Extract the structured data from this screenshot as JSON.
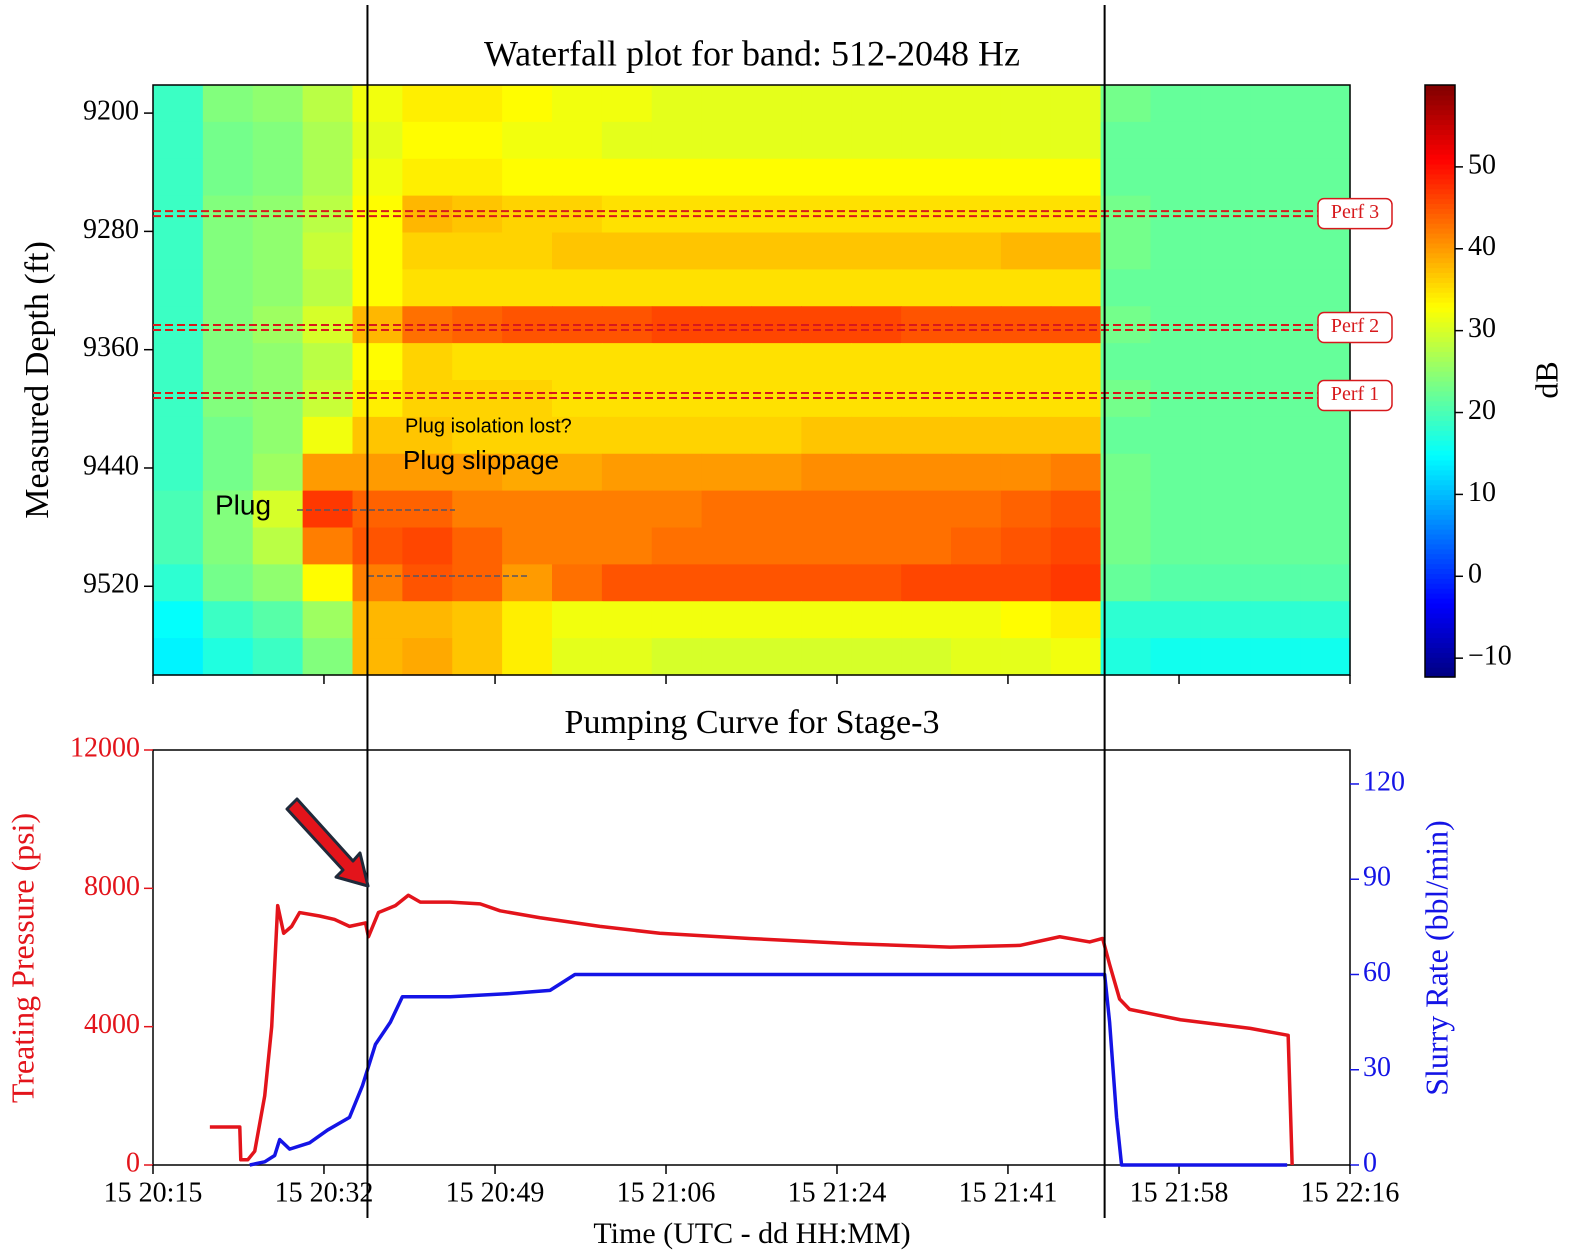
{
  "chart_data": [
    {
      "type": "heatmap",
      "title": "Waterfall plot for band: 512-2048 Hz",
      "ylabel": "Measured Depth (ft)",
      "ylim": [
        9181,
        9580
      ],
      "y_inverted": true,
      "yticks": [
        9200,
        9280,
        9360,
        9440,
        9520
      ],
      "colormap": "jet",
      "zlim": [
        -12.3,
        60
      ],
      "colorbar_label": "dB",
      "zticks": [
        {
          "value": -10,
          "label": "−10"
        },
        0,
        10,
        20,
        30,
        40,
        50
      ],
      "z": [
        [
          19,
          24,
          25,
          28,
          32,
          34,
          34,
          33,
          32,
          32,
          31,
          31,
          31,
          31,
          31,
          31,
          31,
          31,
          31,
          23,
          22,
          22,
          22,
          22
        ],
        [
          19,
          23,
          24,
          27,
          31,
          33,
          33,
          32,
          32,
          31,
          31,
          31,
          31,
          31,
          31,
          31,
          31,
          31,
          31,
          22,
          22,
          22,
          22,
          22
        ],
        [
          19,
          23,
          24,
          27,
          32,
          34,
          34,
          33,
          33,
          33,
          33,
          33,
          33,
          33,
          33,
          33,
          33,
          33,
          33,
          22,
          22,
          22,
          22,
          22
        ],
        [
          19,
          24,
          25,
          28,
          33,
          38,
          37,
          36,
          36,
          35,
          35,
          35,
          35,
          35,
          35,
          35,
          35,
          35,
          35,
          23,
          22,
          22,
          22,
          22
        ],
        [
          19,
          24,
          25,
          29,
          33,
          36,
          36,
          36,
          37,
          37,
          37,
          37,
          37,
          37,
          37,
          37,
          37,
          38,
          38,
          23,
          22,
          22,
          22,
          22
        ],
        [
          19,
          24,
          25,
          28,
          33,
          35,
          35,
          35,
          35,
          35,
          35,
          35,
          35,
          35,
          35,
          35,
          35,
          35,
          35,
          22,
          22,
          22,
          22,
          22
        ],
        [
          19,
          24,
          26,
          30,
          38,
          43,
          44,
          45,
          45,
          45,
          46,
          46,
          46,
          46,
          46,
          45,
          45,
          45,
          45,
          23,
          22,
          22,
          22,
          22
        ],
        [
          19,
          24,
          25,
          28,
          33,
          36,
          35,
          35,
          35,
          35,
          35,
          35,
          35,
          35,
          35,
          35,
          35,
          35,
          35,
          22,
          22,
          22,
          22,
          22
        ],
        [
          19,
          24,
          25,
          29,
          34,
          36,
          36,
          36,
          35,
          35,
          35,
          35,
          35,
          35,
          35,
          35,
          35,
          35,
          35,
          23,
          22,
          22,
          22,
          22
        ],
        [
          19,
          23,
          25,
          32,
          37,
          37,
          36,
          36,
          36,
          36,
          36,
          36,
          36,
          37,
          37,
          37,
          37,
          37,
          37,
          22,
          22,
          22,
          22,
          22
        ],
        [
          19,
          23,
          26,
          40,
          40,
          40,
          40,
          39,
          39,
          40,
          40,
          40,
          40,
          41,
          41,
          41,
          41,
          41,
          42,
          23,
          22,
          22,
          22,
          22
        ],
        [
          20,
          24,
          30,
          47,
          44,
          44,
          42,
          42,
          42,
          42,
          42,
          43,
          43,
          43,
          43,
          43,
          43,
          44,
          45,
          23,
          22,
          22,
          22,
          22
        ],
        [
          20,
          24,
          28,
          42,
          45,
          46,
          44,
          42,
          42,
          42,
          43,
          43,
          43,
          43,
          43,
          43,
          44,
          45,
          46,
          23,
          22,
          22,
          22,
          22
        ],
        [
          18,
          23,
          25,
          33,
          42,
          45,
          44,
          40,
          43,
          45,
          45,
          45,
          45,
          45,
          45,
          46,
          46,
          46,
          47,
          22,
          21,
          21,
          21,
          21
        ],
        [
          15,
          19,
          21,
          26,
          38,
          38,
          37,
          34,
          32,
          32,
          32,
          32,
          32,
          32,
          32,
          32,
          32,
          33,
          34,
          18,
          18,
          18,
          18,
          18
        ],
        [
          14,
          17,
          19,
          24,
          38,
          39,
          37,
          34,
          31,
          31,
          30,
          30,
          30,
          30,
          30,
          30,
          31,
          31,
          32,
          17,
          16,
          16,
          16,
          16
        ]
      ],
      "perforations": [
        {
          "label": "Perf 3",
          "depth": 9268
        },
        {
          "label": "Perf 2",
          "depth": 9345
        },
        {
          "label": "Perf 1",
          "depth": 9391
        }
      ],
      "perforation_color": "#d7191c",
      "annotations": [
        {
          "text": "Plug"
        },
        {
          "text": "Plug slippage"
        },
        {
          "text": "Plug isolation lost?"
        }
      ]
    },
    {
      "type": "line",
      "title": "Pumping Curve for Stage-3",
      "xlabel": "Time (UTC - dd HH:MM)",
      "ylabel": "Treating Pressure (psi)",
      "y2label": "Slurry Rate (bbl/min)",
      "xlim": [
        0,
        120
      ],
      "xticks": [
        {
          "value": 0,
          "label": "15 20:15"
        },
        {
          "value": 17.14,
          "label": "15 20:32"
        },
        {
          "value": 34.29,
          "label": "15 20:49"
        },
        {
          "value": 51.43,
          "label": "15 21:06"
        },
        {
          "value": 68.57,
          "label": "15 21:24"
        },
        {
          "value": 85.71,
          "label": "15 21:41"
        },
        {
          "value": 102.86,
          "label": "15 21:58"
        },
        {
          "value": 120,
          "label": "15 22:16"
        }
      ],
      "ylim": [
        0,
        12000
      ],
      "yticks": [
        0,
        4000,
        8000,
        12000
      ],
      "y2lim": [
        0,
        130.7
      ],
      "y2ticks": [
        0,
        30,
        60,
        90,
        120
      ],
      "event_lines": [
        21.5,
        95.4
      ],
      "series": [
        {
          "color": "#e3141b",
          "axis": "y",
          "x": [
            5.7,
            8.7,
            8.8,
            9.5,
            10.2,
            11.2,
            11.9,
            12.5,
            13.1,
            13.9,
            14.7,
            16.7,
            18.2,
            19.7,
            21.3,
            21.6,
            22.6,
            24.3,
            25.6,
            26.8,
            29.8,
            32.8,
            34.8,
            38.8,
            44.8,
            50.8,
            59.8,
            69.9,
            79.9,
            86.9,
            90.9,
            93.9,
            95.2,
            95.9,
            96.9,
            97.9,
            103,
            110,
            113.8,
            114.2
          ],
          "values": [
            1100,
            1100,
            150,
            150,
            400,
            2000,
            4000,
            7500,
            6700,
            6900,
            7300,
            7200,
            7100,
            6900,
            7000,
            6600,
            7300,
            7500,
            7800,
            7600,
            7600,
            7550,
            7350,
            7150,
            6900,
            6700,
            6550,
            6400,
            6300,
            6350,
            6600,
            6450,
            6550,
            5800,
            4800,
            4500,
            4200,
            3950,
            3750,
            0
          ]
        },
        {
          "color": "#1414e6",
          "axis": "y2",
          "x": [
            9.7,
            11.2,
            12.2,
            12.7,
            13.7,
            15.7,
            17.5,
            19.7,
            21,
            22.3,
            23.8,
            25,
            29.8,
            35.8,
            39.8,
            42.3,
            54.8,
            95.4,
            95.9,
            96.6,
            97.1,
            113.7
          ],
          "values": [
            0,
            1,
            3,
            8,
            5,
            7,
            11,
            15,
            25,
            38,
            45,
            53,
            53,
            54,
            55,
            60,
            60,
            60,
            45,
            15,
            0,
            0
          ]
        }
      ]
    }
  ]
}
